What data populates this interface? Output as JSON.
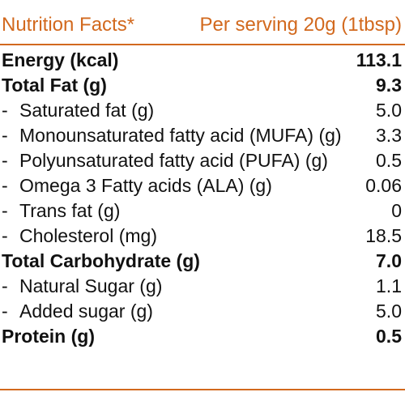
{
  "header": {
    "title": "Nutrition Facts*",
    "serving": "Per serving 20g (1tbsp)"
  },
  "colors": {
    "accent": "#d2691e",
    "text": "#111111",
    "background": "#ffffff"
  },
  "rows": [
    {
      "label": "Energy (kcal)",
      "value": "113.1",
      "style": "bold"
    },
    {
      "label": "Total Fat (g)",
      "value": "9.3",
      "style": "bold"
    },
    {
      "label": "Saturated fat (g)",
      "value": "5.0",
      "style": "sub"
    },
    {
      "label": "Monounsaturated fatty acid (MUFA) (g)",
      "value": "3.3",
      "style": "sub"
    },
    {
      "label": "Polyunsaturated fatty acid (PUFA) (g)",
      "value": "0.5",
      "style": "sub"
    },
    {
      "label": "Omega 3 Fatty acids (ALA) (g)",
      "value": "0.06",
      "style": "sub"
    },
    {
      "label": "Trans fat (g)",
      "value": "0",
      "style": "sub"
    },
    {
      "label": "Cholesterol (mg)",
      "value": "18.5",
      "style": "sub"
    },
    {
      "label": "Total Carbohydrate (g)",
      "value": "7.0",
      "style": "bold"
    },
    {
      "label": "Natural Sugar (g)",
      "value": "1.1",
      "style": "sub"
    },
    {
      "label": "Added sugar (g)",
      "value": "5.0",
      "style": "sub"
    },
    {
      "label": "Protein (g)",
      "value": "0.5",
      "style": "bold"
    }
  ]
}
